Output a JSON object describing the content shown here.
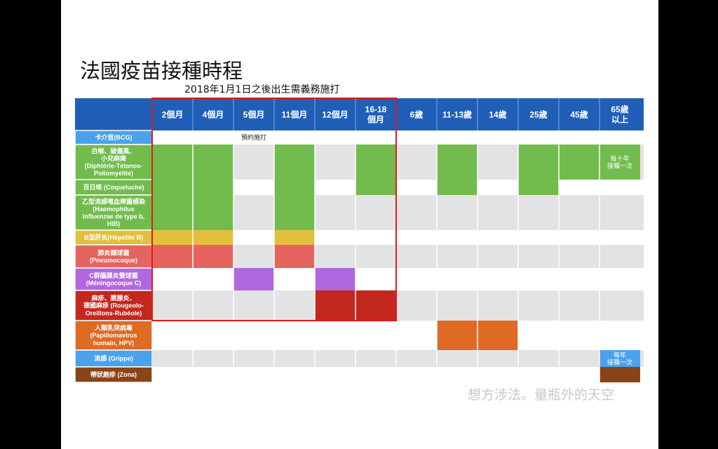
{
  "title": "法國疫苗接種時程",
  "subtitle": "2018年1月1日之後出生需義務施打",
  "watermark": "想方涉法。量瓶外的天空",
  "colors": {
    "header": "#1f5fb8",
    "green": "#72bc4d",
    "yellow": "#e2bf3d",
    "salmon": "#e56460",
    "purple": "#b168df",
    "darkred": "#c4271d",
    "orange": "#df6a24",
    "lightblue": "#4aa2eb",
    "brown": "#8b4318",
    "lightgray": "#e3e3e5",
    "highlight": "#e01b1b"
  },
  "columns": [
    "2個月",
    "4個月",
    "5個月",
    "11個月",
    "12個月",
    "16-18\n個月",
    "6歲",
    "11-13歲",
    "14歲",
    "25歲",
    "45歲",
    "65歲\n以上"
  ],
  "rows": [
    {
      "label": "卡介苗(BCG)",
      "color": "lightblue",
      "bg": "white",
      "cells": [],
      "note": {
        "text": "預約施打",
        "col": 2
      }
    },
    {
      "label": "白喉、破傷風、\n小兒麻痺\n(Diphtérie-Tétanos-\nPoliomyélite)",
      "color": "green",
      "bg": "lightgray",
      "cells": [
        {
          "start": 0,
          "end": 2
        },
        {
          "start": 3,
          "end": 4
        },
        {
          "start": 5,
          "end": 6
        },
        {
          "start": 7,
          "end": 8
        },
        {
          "start": 9,
          "end": 10
        },
        {
          "start": 10,
          "end": 11
        },
        {
          "start": 11,
          "end": 12,
          "text": "每十年\n接種一次"
        }
      ]
    },
    {
      "label": "百日咳 (Coqueluche)",
      "color": "green",
      "bg": "white",
      "cells": [
        {
          "start": 0,
          "end": 2
        },
        {
          "start": 3,
          "end": 4
        },
        {
          "start": 5,
          "end": 6
        },
        {
          "start": 7,
          "end": 8
        },
        {
          "start": 9,
          "end": 10
        }
      ]
    },
    {
      "label": "乙型流感嗜血桿菌感染\n(Haemophilus\nInfluenzae de type b,\nHIB)",
      "color": "green",
      "bg": "lightgray",
      "cells": [
        {
          "start": 0,
          "end": 2
        },
        {
          "start": 3,
          "end": 4
        }
      ]
    },
    {
      "label": "B型肝炎(Hépatite B)",
      "color": "yellow",
      "bg": "white",
      "cells": [
        {
          "start": 0,
          "end": 2
        },
        {
          "start": 3,
          "end": 4
        }
      ]
    },
    {
      "label": "肺炎鏈球菌\n(Pneumocoque)",
      "color": "salmon",
      "bg": "lightgray",
      "cells": [
        {
          "start": 0,
          "end": 2
        },
        {
          "start": 3,
          "end": 4
        }
      ]
    },
    {
      "label": "C群腦膜炎雙球菌\n(Méningocoque C)",
      "color": "purple",
      "bg": "white",
      "cells": [
        {
          "start": 2,
          "end": 3
        },
        {
          "start": 4,
          "end": 5
        }
      ]
    },
    {
      "label": "麻疹、腮腺炎、\n德國麻疹 (Rougeolo-\nOreillons-Rubéole)",
      "color": "darkred",
      "bg": "lightgray",
      "cells": [
        {
          "start": 4,
          "end": 5
        },
        {
          "start": 5,
          "end": 6
        }
      ]
    },
    {
      "label": "人類乳突病毒\n(Papillomavirus\nhumain, HPV)",
      "color": "orange",
      "bg": "white",
      "cells": [
        {
          "start": 7,
          "end": 8
        },
        {
          "start": 8,
          "end": 9
        }
      ]
    },
    {
      "label": "流感 (Grippe)",
      "color": "lightblue",
      "bg": "lightgray",
      "cells": [
        {
          "start": 11,
          "end": 12,
          "text": "每年\n接種一次"
        }
      ]
    },
    {
      "label": "帶狀皰疹 (Zona)",
      "color": "brown",
      "bg": "white",
      "cells": [
        {
          "start": 11,
          "end": 12
        }
      ]
    }
  ],
  "highlight": {
    "start_col": 0,
    "end_col": 6
  }
}
